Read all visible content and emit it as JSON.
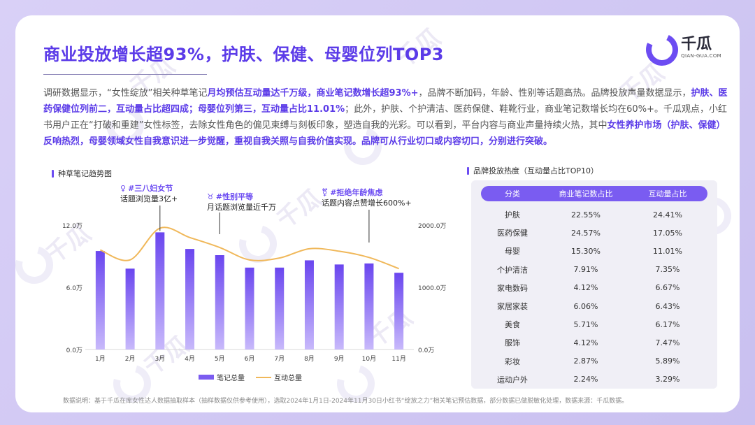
{
  "page": {
    "title": "商业投放增长超93%，护肤、保健、母婴位列TOP3",
    "logo": {
      "name": "千瓜",
      "url": "QIAN-GUA.COM"
    },
    "watermark": "千瓜",
    "description_segments": [
      {
        "text": "调研数据显示，“女性绽放”相关种草笔记",
        "hl": false
      },
      {
        "text": "月均预估互动量达千万级，商业笔记数增长超93%+",
        "hl": true
      },
      {
        "text": "，品牌不断加码，年龄、性别等话题高热。品牌投放声量数据显示，",
        "hl": false
      },
      {
        "text": "护肤、医药保健位列前二，互动量占比超四成；母婴位列第三，互动量占比11.01%",
        "hl": true
      },
      {
        "text": "；此外，护肤、个护清洁、医药保健、鞋靴行业，商业笔记数增长均在60%+。千瓜观点，小红书用户正在“打破和重建”女性标签，去除女性角色的偏见束缚与刻板印象，塑造自我的光彩。可以看到，平台内容与商业声量持续火热，其中",
        "hl": false
      },
      {
        "text": "女性养护市场（护肤、保健）反响热烈，母婴领域女性自我意识进一步觉醒，重视自我关照与自我价值实现。品牌可从行业切口或内容切口，分别进行突破。",
        "hl": true
      }
    ],
    "footnote": "数据说明：基于千瓜在库女性达人数据抽取样本（抽样数据仅供参考使用），选取2024年1月1日-2024年11月30日小红书“绽放之力”相关笔记预估数据，部分数据已做脱敏化处理，数据来源：千瓜数据。"
  },
  "chart_section": {
    "label": "种草笔记趋势图",
    "annotations": [
      {
        "icon": "♀",
        "title": "#三八妇女节",
        "text": "话题浏览量3亿+"
      },
      {
        "icon": "♉",
        "title": "#性别平等",
        "text": "月话题浏览量近千万"
      },
      {
        "icon": "⚧",
        "title": "#拒绝年龄焦虑",
        "text": "话题内容点赞增长600%+"
      }
    ]
  },
  "chart_data": {
    "type": "bar",
    "categories": [
      "1月",
      "2月",
      "3月",
      "4月",
      "5月",
      "6月",
      "7月",
      "8月",
      "9月",
      "10月",
      "11月"
    ],
    "series": [
      {
        "name": "笔记总量",
        "type": "bar",
        "axis": "left",
        "values": [
          9.5,
          7.8,
          11.3,
          9.7,
          9.1,
          7.9,
          7.9,
          8.6,
          8.2,
          8.3,
          7.4
        ]
      },
      {
        "name": "互动总量",
        "type": "line",
        "axis": "right",
        "values": [
          1600,
          1440,
          1950,
          1800,
          1640,
          1440,
          1470,
          1620,
          1580,
          1480,
          1300
        ]
      }
    ],
    "y_left": {
      "ticks": [
        "0.0万",
        "6.0万",
        "12.0万"
      ],
      "range": [
        0,
        12
      ]
    },
    "y_right": {
      "ticks": [
        "0.0万",
        "1000.0万",
        "2000.0万"
      ],
      "range": [
        0,
        2000
      ]
    },
    "colors": {
      "bar_top": "#6a46ef",
      "bar_bottom": "#c8b9fb",
      "line": "#f0b85a"
    },
    "legend": "bottom"
  },
  "table_section": {
    "label": "品牌投放热度（互动量占比TOP10）",
    "headers": [
      "分类",
      "商业笔记数占比",
      "互动量占比"
    ],
    "rows": [
      [
        "护肤",
        "22.55%",
        "24.41%"
      ],
      [
        "医药保健",
        "24.57%",
        "17.05%"
      ],
      [
        "母婴",
        "15.30%",
        "11.01%"
      ],
      [
        "个护清洁",
        "7.91%",
        "7.35%"
      ],
      [
        "家电数码",
        "4.12%",
        "6.67%"
      ],
      [
        "家居家装",
        "6.06%",
        "6.43%"
      ],
      [
        "美食",
        "5.71%",
        "6.17%"
      ],
      [
        "服饰",
        "4.12%",
        "7.47%"
      ],
      [
        "彩妆",
        "2.87%",
        "5.89%"
      ],
      [
        "运动户外",
        "2.24%",
        "3.29%"
      ]
    ]
  }
}
